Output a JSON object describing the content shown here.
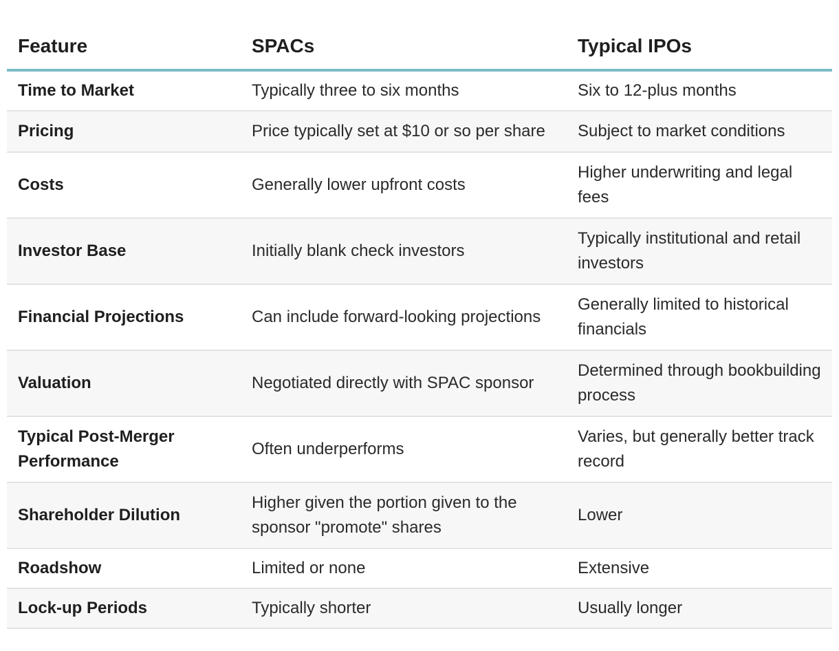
{
  "table": {
    "headers": [
      "Feature",
      "SPACs",
      "Typical IPOs"
    ],
    "rows": [
      {
        "feature": "Time to Market",
        "spacs": "Typically three to six months",
        "ipos": "Six to 12-plus months"
      },
      {
        "feature": "Pricing",
        "spacs": "Price typically set at $10 or so per share",
        "ipos": "Subject to market conditions"
      },
      {
        "feature": "Costs",
        "spacs": "Generally lower upfront costs",
        "ipos": "Higher underwriting and legal fees"
      },
      {
        "feature": "Investor Base",
        "spacs": "Initially blank check investors",
        "ipos": "Typically institutional and retail investors"
      },
      {
        "feature": "Financial Projections",
        "spacs": "Can include forward-looking projections",
        "ipos": "Generally limited to historical financials"
      },
      {
        "feature": "Valuation",
        "spacs": "Negotiated directly with SPAC sponsor",
        "ipos": "Determined through bookbuilding process"
      },
      {
        "feature": "Typical Post-Merger Performance",
        "spacs": "Often underperforms",
        "ipos": "Varies, but generally better track record"
      },
      {
        "feature": "Shareholder Dilution",
        "spacs": "Higher given the portion given to the sponsor \"promote\" shares",
        "ipos": "Lower"
      },
      {
        "feature": "Roadshow",
        "spacs": "Limited or none",
        "ipos": "Extensive"
      },
      {
        "feature": "Lock-up Periods",
        "spacs": "Typically shorter",
        "ipos": "Usually longer"
      }
    ]
  },
  "colors": {
    "header_rule": "#7bbcc4",
    "row_stripe": "#f7f7f7",
    "row_divider": "#e3e3e3"
  }
}
